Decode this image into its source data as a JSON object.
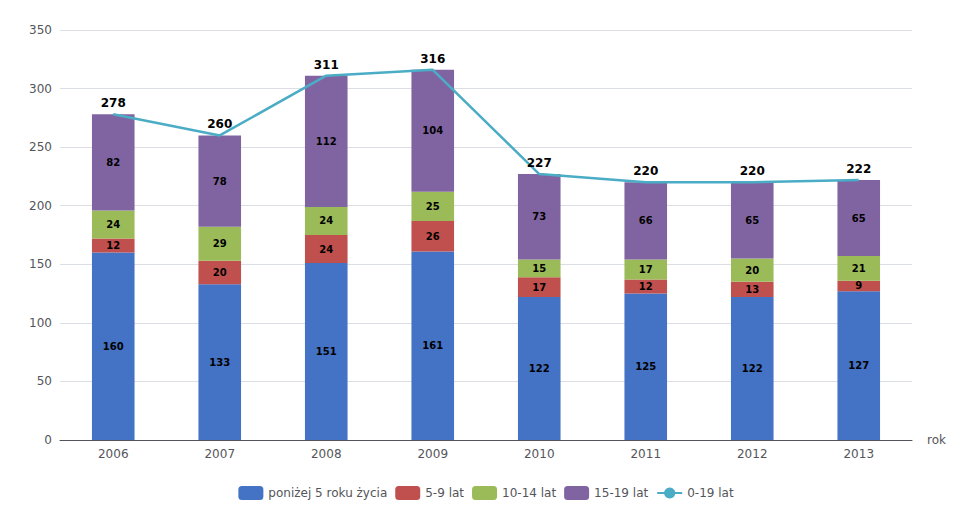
{
  "chart_data": {
    "type": "bar",
    "stacked": true,
    "xlabel": "rok",
    "categories": [
      "2006",
      "2007",
      "2008",
      "2009",
      "2010",
      "2011",
      "2012",
      "2013"
    ],
    "series": [
      {
        "name": "poniżej 5 roku życia",
        "type": "bar",
        "color": "#4472C4",
        "values": [
          160,
          133,
          151,
          161,
          122,
          125,
          122,
          127
        ]
      },
      {
        "name": "5-9 lat",
        "type": "bar",
        "color": "#C0504D",
        "values": [
          12,
          20,
          24,
          26,
          17,
          12,
          13,
          9
        ]
      },
      {
        "name": "10-14 lat",
        "type": "bar",
        "color": "#9BBB59",
        "values": [
          24,
          29,
          24,
          25,
          15,
          17,
          20,
          21
        ]
      },
      {
        "name": "15-19 lat",
        "type": "bar",
        "color": "#8064A2",
        "values": [
          82,
          78,
          112,
          104,
          73,
          66,
          65,
          65
        ]
      },
      {
        "name": "0-19 lat",
        "type": "line",
        "color": "#4BACC6",
        "values": [
          278,
          260,
          311,
          316,
          227,
          220,
          220,
          222
        ]
      }
    ],
    "ylim": [
      0,
      350
    ],
    "yticks": [
      0,
      50,
      100,
      150,
      200,
      250,
      300,
      350
    ],
    "grid": true,
    "legend": "bottom",
    "data_labels": true
  }
}
